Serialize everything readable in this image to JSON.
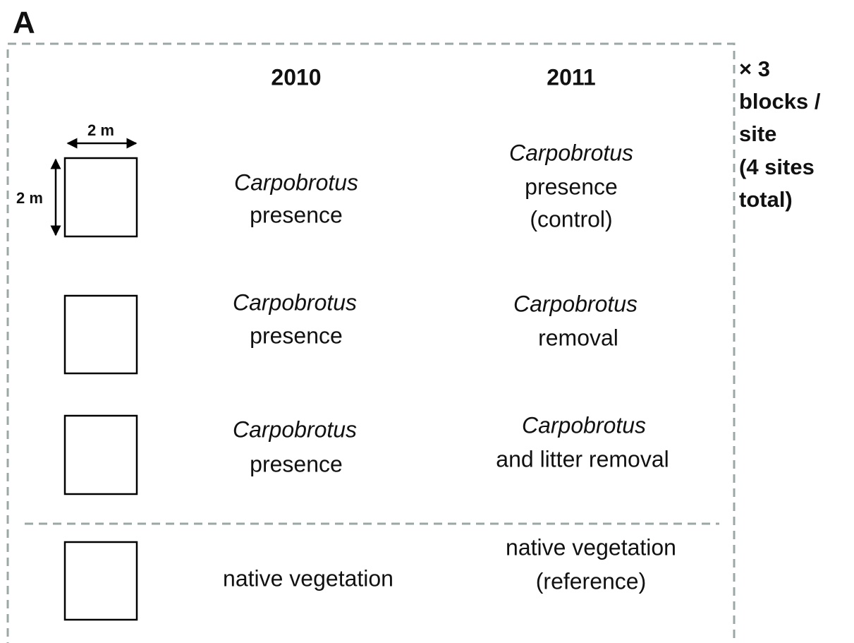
{
  "panel_label": "A",
  "columns": [
    "2010",
    "2011"
  ],
  "dimensions": {
    "width": "2 m",
    "height": "2 m"
  },
  "note": [
    "× 3",
    "blocks /",
    "site",
    "(4 sites",
    "total)"
  ],
  "rows": [
    {
      "y2010": [
        "Carpobrotus",
        "presence"
      ],
      "y2011": [
        "Carpobrotus",
        "presence",
        "(control)"
      ]
    },
    {
      "y2010": [
        "Carpobrotus",
        "presence"
      ],
      "y2011": [
        "Carpobrotus",
        "removal"
      ]
    },
    {
      "y2010": [
        "Carpobrotus",
        "presence"
      ],
      "y2011": [
        "Carpobrotus",
        "and litter removal"
      ]
    },
    {
      "y2010": [
        "native vegetation"
      ],
      "y2011": [
        "native vegetation",
        "(reference)"
      ]
    }
  ]
}
